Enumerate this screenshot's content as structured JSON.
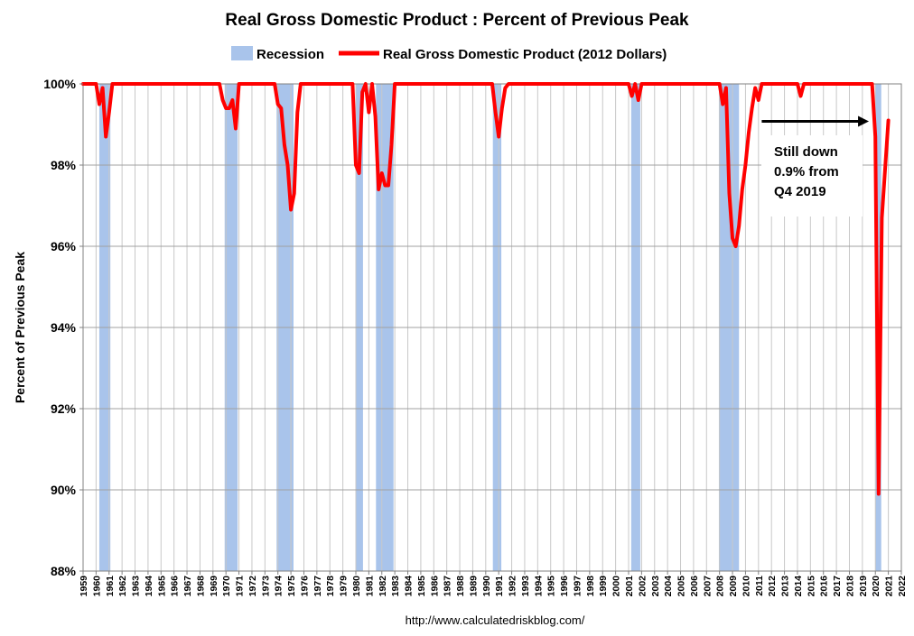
{
  "chart_data": {
    "type": "line",
    "title": "Real Gross Domestic Product : Percent of Previous Peak",
    "ylabel": "Percent of Previous Peak",
    "xlabel": "",
    "ylim": [
      88,
      100
    ],
    "xlim": [
      1959,
      2022
    ],
    "y_ticks": [
      "88%",
      "90%",
      "92%",
      "94%",
      "96%",
      "98%",
      "100%"
    ],
    "y_tick_values": [
      88,
      90,
      92,
      94,
      96,
      98,
      100
    ],
    "x_ticks": [
      "1959",
      "1960",
      "1961",
      "1962",
      "1963",
      "1964",
      "1965",
      "1966",
      "1967",
      "1968",
      "1969",
      "1970",
      "1971",
      "1972",
      "1973",
      "1974",
      "1975",
      "1976",
      "1977",
      "1978",
      "1979",
      "1980",
      "1981",
      "1982",
      "1983",
      "1984",
      "1985",
      "1986",
      "1987",
      "1988",
      "1989",
      "1990",
      "1991",
      "1992",
      "1993",
      "1994",
      "1995",
      "1996",
      "1997",
      "1998",
      "1999",
      "2000",
      "2001",
      "2002",
      "2003",
      "2004",
      "2005",
      "2006",
      "2007",
      "2008",
      "2009",
      "2010",
      "2011",
      "2012",
      "2013",
      "2014",
      "2015",
      "2016",
      "2017",
      "2018",
      "2019",
      "2020",
      "2021",
      "2022"
    ],
    "grid": true,
    "legend": {
      "placement": "top",
      "entries": [
        {
          "label": "Recession",
          "type": "band",
          "color": "#a9c4eb"
        },
        {
          "label": "Real Gross Domestic Product (2012 Dollars)",
          "type": "line",
          "color": "#ff0000"
        }
      ]
    },
    "recessions": [
      [
        1960.25,
        1961.1
      ],
      [
        1969.9,
        1970.9
      ],
      [
        1973.9,
        1975.2
      ],
      [
        1980.0,
        1980.55
      ],
      [
        1981.55,
        1982.9
      ],
      [
        1990.55,
        1991.2
      ],
      [
        2001.2,
        2001.9
      ],
      [
        2007.95,
        2009.5
      ],
      [
        2020.0,
        2020.45
      ]
    ],
    "series": [
      {
        "name": "Real Gross Domestic Product (2012 Dollars)",
        "color": "#ff0000",
        "points": [
          [
            1959.0,
            100
          ],
          [
            1960.0,
            100
          ],
          [
            1960.25,
            99.5
          ],
          [
            1960.5,
            99.9
          ],
          [
            1960.75,
            98.7
          ],
          [
            1961.0,
            99.3
          ],
          [
            1961.25,
            100
          ],
          [
            1969.5,
            100
          ],
          [
            1969.75,
            99.6
          ],
          [
            1970.0,
            99.4
          ],
          [
            1970.25,
            99.4
          ],
          [
            1970.5,
            99.6
          ],
          [
            1970.75,
            98.9
          ],
          [
            1971.0,
            100
          ],
          [
            1973.75,
            100
          ],
          [
            1974.0,
            99.5
          ],
          [
            1974.25,
            99.4
          ],
          [
            1974.5,
            98.5
          ],
          [
            1974.75,
            98.0
          ],
          [
            1975.0,
            96.9
          ],
          [
            1975.25,
            97.3
          ],
          [
            1975.5,
            99.3
          ],
          [
            1975.75,
            100
          ],
          [
            1979.75,
            100
          ],
          [
            1980.0,
            98.0
          ],
          [
            1980.25,
            97.8
          ],
          [
            1980.5,
            99.8
          ],
          [
            1980.75,
            100
          ],
          [
            1981.0,
            99.3
          ],
          [
            1981.25,
            100
          ],
          [
            1981.5,
            99.2
          ],
          [
            1981.75,
            97.4
          ],
          [
            1982.0,
            97.8
          ],
          [
            1982.25,
            97.5
          ],
          [
            1982.5,
            97.5
          ],
          [
            1982.75,
            98.5
          ],
          [
            1983.0,
            100
          ],
          [
            1990.5,
            100
          ],
          [
            1990.75,
            99.3
          ],
          [
            1991.0,
            98.7
          ],
          [
            1991.25,
            99.4
          ],
          [
            1991.5,
            99.9
          ],
          [
            1991.75,
            100
          ],
          [
            2001.0,
            100
          ],
          [
            2001.25,
            99.7
          ],
          [
            2001.5,
            100
          ],
          [
            2001.75,
            99.6
          ],
          [
            2002.0,
            100
          ],
          [
            2008.0,
            100
          ],
          [
            2008.25,
            99.5
          ],
          [
            2008.5,
            99.9
          ],
          [
            2008.75,
            97.3
          ],
          [
            2009.0,
            96.2
          ],
          [
            2009.25,
            96.0
          ],
          [
            2009.5,
            96.5
          ],
          [
            2009.75,
            97.4
          ],
          [
            2010.0,
            98.0
          ],
          [
            2010.25,
            98.8
          ],
          [
            2010.5,
            99.4
          ],
          [
            2010.75,
            99.9
          ],
          [
            2011.0,
            99.6
          ],
          [
            2011.25,
            100
          ],
          [
            2014.0,
            100
          ],
          [
            2014.25,
            99.7
          ],
          [
            2014.5,
            100
          ],
          [
            2019.75,
            100
          ],
          [
            2020.0,
            98.7
          ],
          [
            2020.25,
            89.9
          ],
          [
            2020.5,
            96.7
          ],
          [
            2020.75,
            97.9
          ],
          [
            2021.0,
            99.1
          ]
        ]
      }
    ],
    "annotation": {
      "lines": [
        "Still down",
        "0.9% from",
        "Q4 2019"
      ],
      "arrow": {
        "from_x": 2011.25,
        "to_x": 2019.5,
        "y": 99.1
      }
    },
    "footer": "http://www.calculatedriskblog.com/"
  }
}
